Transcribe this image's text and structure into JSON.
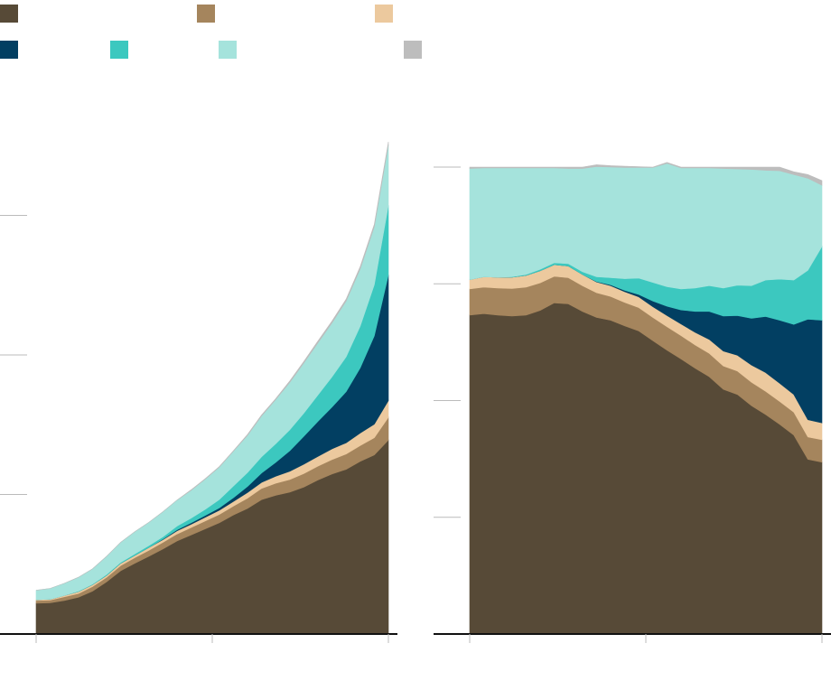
{
  "chart_data": [
    {
      "type": "area",
      "stacked": true,
      "x": [
        0,
        4,
        8,
        12,
        16,
        20,
        24,
        28,
        32,
        36,
        40,
        44,
        48,
        52,
        56,
        60,
        64,
        68,
        72,
        76,
        80,
        84,
        88,
        92,
        96,
        100
      ],
      "ylim": [
        0,
        100
      ],
      "xticks": [
        0,
        50,
        100
      ],
      "yticks": [
        30,
        60,
        90
      ],
      "grid": false,
      "series": [
        {
          "key": "dark_brown",
          "color": "#574a37",
          "values": [
            6.6,
            6.7,
            7.2,
            7.9,
            9.2,
            11.2,
            13.6,
            15.2,
            16.7,
            18.3,
            20.0,
            21.3,
            22.6,
            23.9,
            25.6,
            27.0,
            28.9,
            29.8,
            30.5,
            31.6,
            33.1,
            34.4,
            35.4,
            37.1,
            38.5,
            41.7
          ]
        },
        {
          "key": "tan",
          "color": "#a5855d",
          "values": [
            0.6,
            0.6,
            0.8,
            0.8,
            1.0,
            1.0,
            1.1,
            1.2,
            1.3,
            1.4,
            1.5,
            1.6,
            1.7,
            1.8,
            1.9,
            2.2,
            2.4,
            2.6,
            2.7,
            2.9,
            3.0,
            3.1,
            3.3,
            3.4,
            3.7,
            4.9
          ]
        },
        {
          "key": "light_tan",
          "color": "#ecc99e",
          "values": [
            0.2,
            0.2,
            0.3,
            0.4,
            0.4,
            0.4,
            0.5,
            0.5,
            0.6,
            0.6,
            0.7,
            0.7,
            0.8,
            0.9,
            1.0,
            1.2,
            1.3,
            1.5,
            1.8,
            2.0,
            2.1,
            2.3,
            2.4,
            2.7,
            2.9,
            3.6
          ]
        },
        {
          "key": "navy",
          "color": "#023f62",
          "values": [
            0.0,
            0.0,
            0.0,
            0.0,
            0.0,
            0.0,
            0.0,
            0.0,
            0.0,
            0.1,
            0.2,
            0.3,
            0.4,
            0.5,
            0.8,
            1.3,
            2.0,
            3.0,
            4.4,
            6.0,
            7.5,
            9.0,
            11.0,
            14.0,
            19.0,
            27.0
          ]
        },
        {
          "key": "teal",
          "color": "#3cc8bf",
          "values": [
            0.0,
            0.0,
            0.0,
            0.1,
            0.1,
            0.2,
            0.2,
            0.3,
            0.4,
            0.5,
            0.8,
            1.0,
            1.3,
            1.8,
            2.5,
            3.0,
            3.5,
            4.0,
            4.5,
            5.0,
            5.7,
            6.5,
            7.5,
            9.0,
            11.0,
            15.0
          ]
        },
        {
          "key": "light_teal",
          "color": "#a5e3dc",
          "values": [
            2.0,
            2.3,
            2.6,
            3.0,
            3.3,
            3.9,
            4.3,
            4.8,
            5.0,
            5.4,
            5.6,
            6.0,
            6.5,
            7.0,
            7.5,
            8.0,
            8.8,
            9.5,
            10.2,
            10.8,
            11.2,
            11.6,
            12.0,
            12.3,
            12.5,
            13.0
          ]
        },
        {
          "key": "grey",
          "color": "#bdbdbd",
          "values": [
            0.0,
            0.0,
            0.0,
            0.0,
            0.0,
            0.0,
            0.0,
            0.0,
            0.0,
            0.0,
            0.0,
            0.1,
            0.1,
            0.1,
            0.1,
            0.2,
            0.2,
            0.2,
            0.3,
            0.3,
            0.4,
            0.4,
            0.4,
            0.5,
            0.5,
            0.6
          ]
        }
      ]
    },
    {
      "type": "area",
      "stacked": true,
      "x": [
        0,
        4,
        8,
        12,
        16,
        20,
        24,
        28,
        32,
        36,
        40,
        44,
        48,
        52,
        56,
        60,
        64,
        68,
        72,
        76,
        80,
        84,
        88,
        92,
        96,
        100
      ],
      "ylim": [
        0,
        100
      ],
      "xticks": [
        0,
        50,
        100
      ],
      "yticks": [
        25,
        50,
        75,
        100
      ],
      "grid": false,
      "series": [
        {
          "key": "dark_brown",
          "color": "#574a37",
          "values": [
            68.3,
            68.6,
            68.3,
            68.1,
            68.3,
            69.3,
            70.9,
            70.7,
            69.1,
            67.8,
            67.2,
            66.0,
            64.9,
            62.8,
            60.8,
            58.9,
            56.9,
            55.1,
            52.4,
            51.3,
            48.9,
            47.0,
            44.9,
            42.6,
            37.4,
            36.8
          ]
        },
        {
          "key": "tan",
          "color": "#a5855d",
          "values": [
            5.6,
            5.7,
            5.8,
            5.9,
            6.0,
            5.9,
            5.7,
            5.6,
            5.5,
            5.3,
            5.1,
            5.0,
            5.0,
            5.0,
            5.0,
            5.0,
            5.0,
            5.0,
            5.0,
            5.0,
            5.0,
            5.0,
            4.9,
            4.9,
            4.8,
            4.8
          ]
        },
        {
          "key": "light_tan",
          "color": "#ecc99e",
          "values": [
            2.0,
            2.2,
            2.3,
            2.4,
            2.5,
            2.6,
            2.5,
            2.5,
            2.4,
            2.3,
            2.3,
            2.3,
            2.3,
            2.3,
            2.4,
            2.5,
            2.7,
            3.0,
            3.2,
            3.4,
            3.7,
            4.0,
            3.9,
            3.8,
            3.7,
            3.6
          ]
        },
        {
          "key": "navy",
          "color": "#023f62",
          "values": [
            0.0,
            0.0,
            0.0,
            0.0,
            0.0,
            0.0,
            0.0,
            0.0,
            0.0,
            0.1,
            0.2,
            0.3,
            0.5,
            1.2,
            2.0,
            3.0,
            4.5,
            6.0,
            7.5,
            8.5,
            10.0,
            12.0,
            13.5,
            15.0,
            21.5,
            22.0
          ]
        },
        {
          "key": "teal",
          "color": "#3cc8bf",
          "values": [
            0.0,
            0.0,
            0.0,
            0.1,
            0.2,
            0.3,
            0.4,
            0.5,
            0.6,
            1.0,
            1.5,
            2.5,
            3.5,
            4.0,
            4.2,
            4.5,
            5.0,
            5.5,
            6.0,
            6.5,
            7.0,
            7.8,
            8.8,
            9.5,
            10.5,
            15.8
          ]
        },
        {
          "key": "light_teal",
          "color": "#a5e3dc",
          "values": [
            23.8,
            23.3,
            23.4,
            23.3,
            22.8,
            21.7,
            20.3,
            20.4,
            22.1,
            23.6,
            23.7,
            23.8,
            23.7,
            24.6,
            26.4,
            25.9,
            25.7,
            25.2,
            25.6,
            24.9,
            24.9,
            23.5,
            23.2,
            22.6,
            19.7,
            13.1
          ]
        },
        {
          "key": "grey",
          "color": "#bdbdbd",
          "values": [
            0.3,
            0.2,
            0.2,
            0.2,
            0.2,
            0.2,
            0.2,
            0.3,
            0.3,
            0.4,
            0.3,
            0.3,
            0.2,
            0.1,
            0.2,
            0.2,
            0.2,
            0.2,
            0.3,
            0.4,
            0.5,
            0.7,
            0.8,
            0.6,
            0.8,
            1.0
          ]
        }
      ]
    }
  ],
  "legend": {
    "rows": [
      [
        {
          "key": "dark_brown",
          "color": "#574a37"
        },
        {
          "key": "tan",
          "color": "#a5855d"
        },
        {
          "key": "light_tan",
          "color": "#ecc99e"
        }
      ],
      [
        {
          "key": "navy",
          "color": "#023f62"
        },
        {
          "key": "teal",
          "color": "#3cc8bf"
        },
        {
          "key": "light_teal",
          "color": "#a5e3dc"
        },
        {
          "key": "grey",
          "color": "#bdbdbd"
        }
      ]
    ],
    "placement": "top-left"
  },
  "colors": {
    "axis": "#111111",
    "tick": "#bbbbbb"
  }
}
